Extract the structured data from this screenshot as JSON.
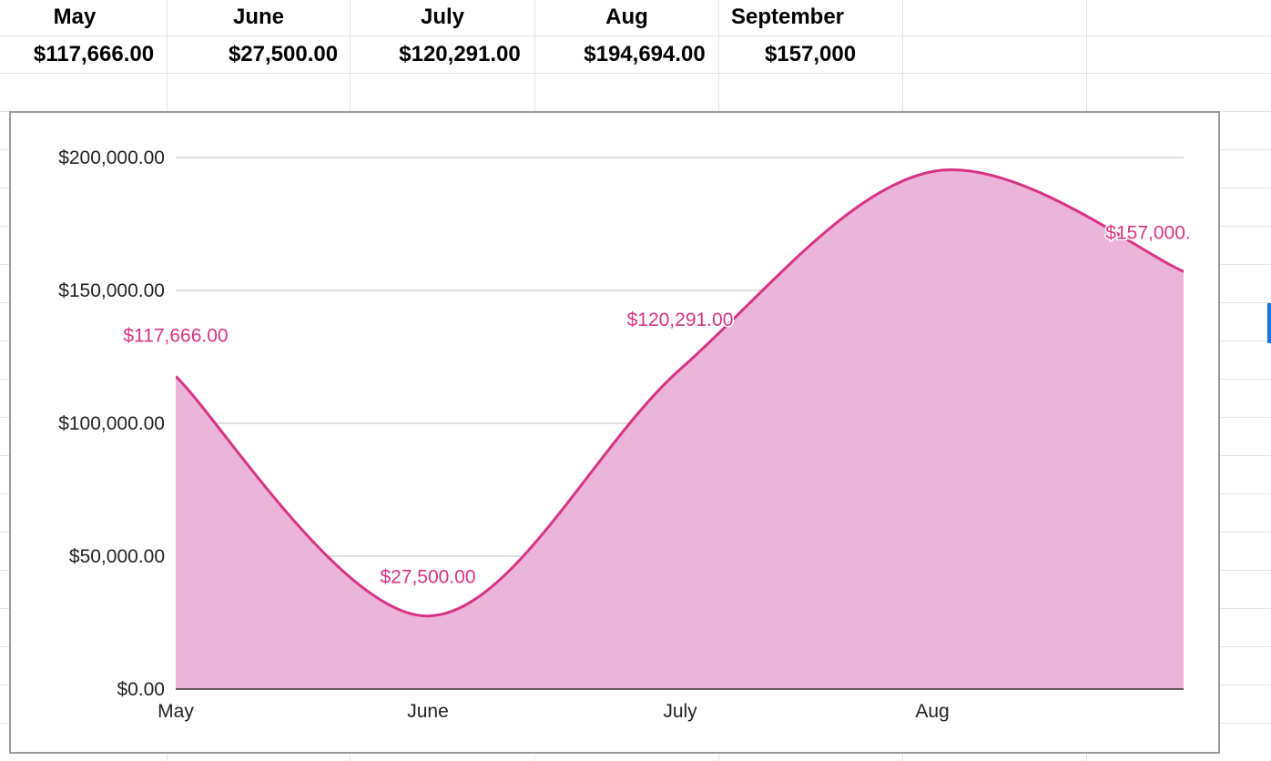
{
  "sheet": {
    "header_row": [
      "May",
      "June",
      "July",
      "Aug",
      "September"
    ],
    "value_row": [
      "$117,666.00",
      "$27,500.00",
      "$120,291.00",
      "$194,694.00",
      "$157,000"
    ]
  },
  "colors": {
    "series_line": "#d63384",
    "series_fill": "#ecb4d8",
    "label": "#d63384",
    "gridline": "#cccccc",
    "axis": "#333333"
  },
  "chart_data": {
    "type": "area",
    "categories": [
      "May",
      "June",
      "July",
      "Aug",
      "September"
    ],
    "x_tick_labels": [
      "May",
      "June",
      "July",
      "Aug"
    ],
    "series": [
      {
        "values": [
          117666,
          27500,
          120291,
          194694,
          157000
        ]
      }
    ],
    "data_labels": [
      "$117,666.00",
      "$27,500.00",
      "$120,291.00",
      "",
      "$157,000."
    ],
    "y_ticks": [
      0,
      50000,
      100000,
      150000,
      200000
    ],
    "y_tick_labels": [
      "$0.00",
      "$50,000.00",
      "$100,000.00",
      "$150,000.00",
      "$200,000.00"
    ],
    "ylim": [
      0,
      200000
    ],
    "grid": true,
    "smooth": true,
    "legend": "none"
  }
}
